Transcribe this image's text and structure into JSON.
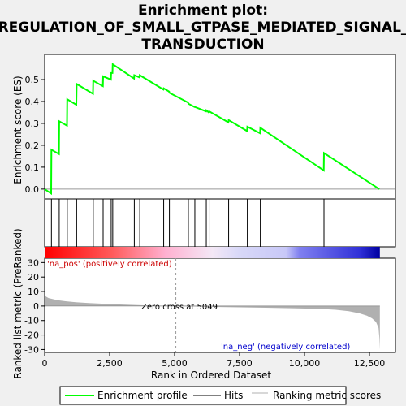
{
  "chart_data": {
    "type": "line",
    "title_lines": [
      "Enrichment plot:",
      "REGULATION_OF_SMALL_GTPASE_MEDIATED_SIGNAL_",
      "TRANSDUCTION"
    ],
    "xlabel": "Rank in Ordered Dataset",
    "ylabel_top": "Enrichment score (ES)",
    "ylabel_bottom": "Ranked list metric (PreRanked)",
    "xlim": [
      0,
      13500
    ],
    "x_ticks": [
      0,
      2500,
      5000,
      7500,
      10000,
      12500
    ],
    "x_tick_labels": [
      "0",
      "2,500",
      "5,000",
      "7,500",
      "10,000",
      "12,500"
    ],
    "es_ylim": [
      -0.045,
      0.615
    ],
    "es_ticks": [
      0.0,
      0.1,
      0.2,
      0.3,
      0.4,
      0.5
    ],
    "es_tick_labels": [
      "0.0",
      "0.1",
      "0.2",
      "0.3",
      "0.4",
      "0.5"
    ],
    "metric_ylim": [
      -32,
      33
    ],
    "metric_ticks": [
      30,
      20,
      10,
      0,
      -10,
      -20,
      -30
    ],
    "metric_tick_labels": [
      "30",
      "20",
      "10",
      "0",
      "-10",
      "-20",
      "-30"
    ],
    "n_genes": 12900,
    "hits": [
      260,
      560,
      870,
      1230,
      1870,
      2250,
      2560,
      2620,
      3450,
      3660,
      4580,
      4800,
      5530,
      5780,
      6220,
      6330,
      7080,
      7800,
      8300,
      10750
    ],
    "enrichment_profile": {
      "x": [
        0,
        250,
        260,
        550,
        560,
        860,
        870,
        1220,
        1230,
        1860,
        1870,
        2240,
        2250,
        2550,
        2560,
        2610,
        2620,
        3440,
        3450,
        3650,
        3660,
        4570,
        4580,
        4790,
        4800,
        5520,
        5530,
        5770,
        5780,
        6210,
        6220,
        6320,
        6330,
        7070,
        7080,
        7790,
        7800,
        8290,
        8300,
        10740,
        10750,
        12880
      ],
      "y": [
        0.0,
        -0.02,
        0.18,
        0.16,
        0.31,
        0.29,
        0.41,
        0.385,
        0.48,
        0.435,
        0.495,
        0.47,
        0.515,
        0.5,
        0.53,
        0.53,
        0.57,
        0.505,
        0.52,
        0.51,
        0.52,
        0.455,
        0.46,
        0.445,
        0.44,
        0.395,
        0.39,
        0.375,
        0.375,
        0.355,
        0.36,
        0.35,
        0.355,
        0.305,
        0.315,
        0.265,
        0.285,
        0.255,
        0.28,
        0.085,
        0.165,
        0.0
      ]
    },
    "metric_curve": {
      "x": [
        0,
        50,
        150,
        300,
        500,
        800,
        1200,
        1700,
        2300,
        3000,
        3800,
        4500,
        5049,
        5600,
        6500,
        7500,
        8500,
        9500,
        10500,
        11200,
        11700,
        12100,
        12400,
        12600,
        12750,
        12850,
        12880,
        12900
      ],
      "y": [
        8,
        6.5,
        5.5,
        4.8,
        4,
        3.3,
        2.6,
        2,
        1.5,
        1,
        0.5,
        0.2,
        0,
        -0.3,
        -0.6,
        -0.9,
        -1.2,
        -1.5,
        -1.9,
        -2.6,
        -3.6,
        -5,
        -6.6,
        -8.5,
        -11,
        -15,
        -22,
        -30
      ]
    },
    "zero_cross_label": "Zero cross at 5049",
    "zero_cross_x": 5049,
    "pos_label": "'na_pos' (positively correlated)",
    "neg_label": "'na_neg' (negatively correlated)",
    "legend": [
      "Enrichment profile",
      "Hits",
      "Ranking metric scores"
    ],
    "colors": {
      "profile": "#00ff00",
      "hits": "#000000",
      "metric": "#b0b0b0",
      "pos_text": "#cc0000",
      "neg_text": "#0000cc"
    }
  }
}
